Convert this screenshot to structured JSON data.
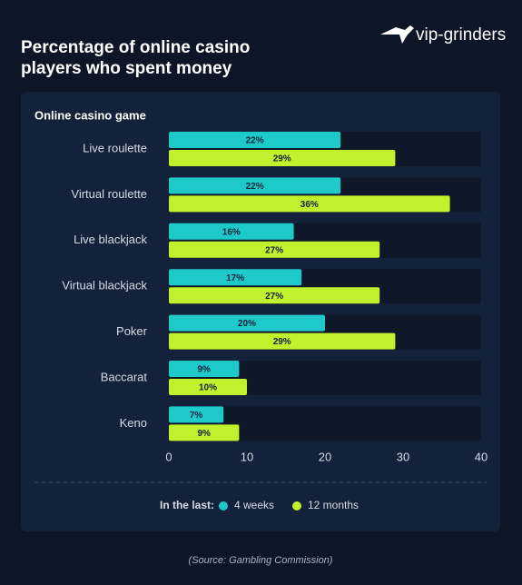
{
  "logo": "vip-grinders",
  "source": "(Source: Gambling Commission)",
  "chart_data": {
    "type": "bar",
    "orientation": "horizontal",
    "title": "Percentage of online casino players who spent money",
    "subtitle": "Online casino game",
    "categories": [
      "Live roulette",
      "Virtual roulette",
      "Live blackjack",
      "Virtual blackjack",
      "Poker",
      "Baccarat",
      "Keno"
    ],
    "series": [
      {
        "name": "4 weeks",
        "color": "#1ec9c9",
        "values": [
          22,
          22,
          16,
          17,
          20,
          9,
          7
        ],
        "value_labels": [
          "22%",
          "22%",
          "16%",
          "17%",
          "20%",
          "9%",
          "7%"
        ]
      },
      {
        "name": "12 months",
        "color": "#c1f02c",
        "values": [
          29,
          36,
          27,
          27,
          29,
          10,
          9
        ],
        "value_labels": [
          "29%",
          "36%",
          "27%",
          "27%",
          "29%",
          "10%",
          "9%"
        ]
      }
    ],
    "legend_title": "In the last:",
    "xlim": [
      0,
      40
    ],
    "xticks": [
      0,
      10,
      20,
      30,
      40
    ]
  }
}
